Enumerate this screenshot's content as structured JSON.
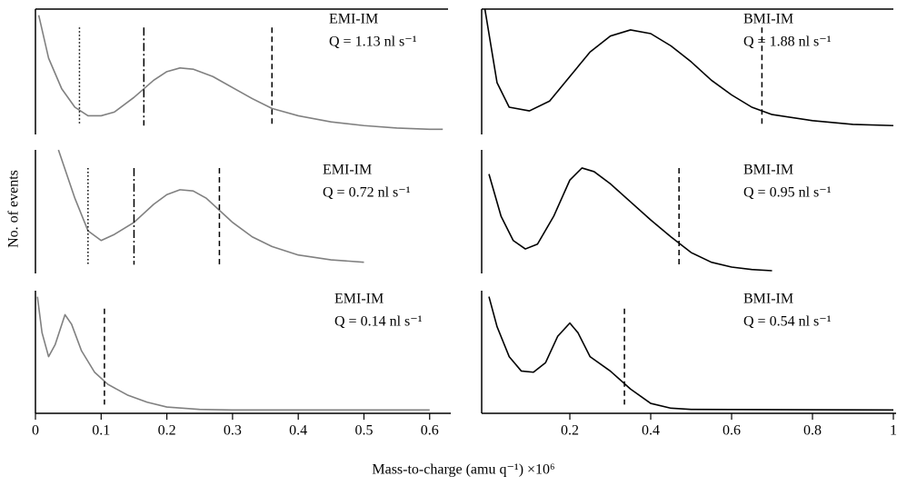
{
  "figure": {
    "ylabel": "No. of events",
    "xlabel": "Mass-to-charge (amu q⁻¹) ×10⁶"
  },
  "chart_data": [
    {
      "type": "line",
      "annotation": "Q = 1.13 nl s⁻¹",
      "xlim": [
        0,
        0.628
      ],
      "ylim": [
        0,
        100
      ],
      "x": [
        0.005,
        0.02,
        0.04,
        0.06,
        0.08,
        0.1,
        0.12,
        0.15,
        0.18,
        0.2,
        0.22,
        0.24,
        0.27,
        0.3,
        0.33,
        0.36,
        0.4,
        0.45,
        0.5,
        0.55,
        0.6,
        0.62
      ],
      "series": [
        {
          "name": "EMI-IM",
          "color": "#808080",
          "values": [
            95,
            60,
            35,
            20,
            13,
            13,
            16,
            28,
            42,
            49,
            52,
            51,
            45,
            36,
            27,
            19,
            13,
            8,
            5,
            3,
            2,
            2
          ]
        }
      ],
      "markers": [
        {
          "x": 0.067,
          "style": "dotted"
        },
        {
          "x": 0.165,
          "style": "dashdot"
        },
        {
          "x": 0.36,
          "style": "dashed"
        }
      ]
    },
    {
      "type": "line",
      "annotation": "Q = 1.88 nl s⁻¹",
      "xlim": [
        -0.018,
        1.0
      ],
      "ylim": [
        0,
        100
      ],
      "x": [
        -0.01,
        0.02,
        0.05,
        0.1,
        0.15,
        0.2,
        0.25,
        0.3,
        0.35,
        0.4,
        0.45,
        0.5,
        0.55,
        0.6,
        0.65,
        0.7,
        0.8,
        0.9,
        1.0
      ],
      "series": [
        {
          "name": "BMI-IM",
          "color": "#000000",
          "values": [
            100,
            40,
            20,
            17,
            25,
            45,
            65,
            78,
            83,
            80,
            70,
            57,
            42,
            30,
            20,
            14,
            9,
            6,
            5
          ]
        }
      ],
      "markers": [
        {
          "x": 0.675,
          "style": "dashed"
        }
      ]
    },
    {
      "type": "line",
      "annotation": "Q = 0.72 nl s⁻¹",
      "xlim": [
        0,
        0.628
      ],
      "ylim": [
        0,
        100
      ],
      "x": [
        0.035,
        0.06,
        0.08,
        0.1,
        0.12,
        0.15,
        0.18,
        0.2,
        0.22,
        0.24,
        0.26,
        0.28,
        0.3,
        0.33,
        0.36,
        0.4,
        0.45,
        0.5
      ],
      "series": [
        {
          "name": "EMI-IM",
          "color": "#808080",
          "values": [
            100,
            60,
            33,
            25,
            30,
            40,
            55,
            63,
            67,
            66,
            60,
            50,
            40,
            28,
            20,
            13,
            9,
            7
          ]
        }
      ],
      "markers": [
        {
          "x": 0.08,
          "style": "dotted"
        },
        {
          "x": 0.15,
          "style": "dashdot"
        },
        {
          "x": 0.28,
          "style": "dashed"
        }
      ]
    },
    {
      "type": "line",
      "annotation": "Q = 0.95 nl s⁻¹",
      "xlim": [
        -0.018,
        1.0
      ],
      "ylim": [
        0,
        100
      ],
      "x": [
        0.0,
        0.03,
        0.06,
        0.09,
        0.12,
        0.16,
        0.2,
        0.23,
        0.26,
        0.3,
        0.35,
        0.4,
        0.45,
        0.5,
        0.55,
        0.6,
        0.65,
        0.7
      ],
      "series": [
        {
          "name": "BMI-IM",
          "color": "#000000",
          "values": [
            80,
            45,
            25,
            18,
            22,
            45,
            75,
            85,
            82,
            72,
            57,
            42,
            28,
            15,
            7,
            3,
            1,
            0
          ]
        }
      ],
      "markers": [
        {
          "x": 0.47,
          "style": "dashed"
        }
      ]
    },
    {
      "type": "line",
      "annotation": "Q = 0.14 nl s⁻¹",
      "xlim": [
        0,
        0.628
      ],
      "ylim": [
        0,
        100
      ],
      "x": [
        0.003,
        0.01,
        0.02,
        0.03,
        0.045,
        0.055,
        0.07,
        0.09,
        0.11,
        0.14,
        0.17,
        0.2,
        0.25,
        0.3,
        0.6
      ],
      "series": [
        {
          "name": "EMI-IM",
          "color": "#808080",
          "values": [
            95,
            65,
            45,
            55,
            80,
            72,
            50,
            32,
            22,
            13,
            7,
            3,
            1,
            0.5,
            0.5
          ]
        }
      ],
      "markers": [
        {
          "x": 0.105,
          "style": "dashed"
        }
      ],
      "xticks": [
        0,
        0.1,
        0.2,
        0.3,
        0.4,
        0.5,
        0.6
      ]
    },
    {
      "type": "line",
      "annotation": "Q = 0.54 nl s⁻¹",
      "xlim": [
        -0.018,
        1.0
      ],
      "ylim": [
        0,
        100
      ],
      "x": [
        0.0,
        0.02,
        0.05,
        0.08,
        0.11,
        0.14,
        0.17,
        0.2,
        0.22,
        0.25,
        0.3,
        0.35,
        0.4,
        0.45,
        0.5,
        1.0
      ],
      "series": [
        {
          "name": "BMI-IM",
          "color": "#000000",
          "values": [
            95,
            70,
            45,
            33,
            32,
            40,
            62,
            73,
            65,
            45,
            33,
            18,
            6,
            2,
            1,
            0.5
          ]
        }
      ],
      "markers": [
        {
          "x": 0.335,
          "style": "dashed"
        }
      ],
      "xticks": [
        0.2,
        0.4,
        0.6,
        0.8,
        1.0
      ]
    }
  ]
}
